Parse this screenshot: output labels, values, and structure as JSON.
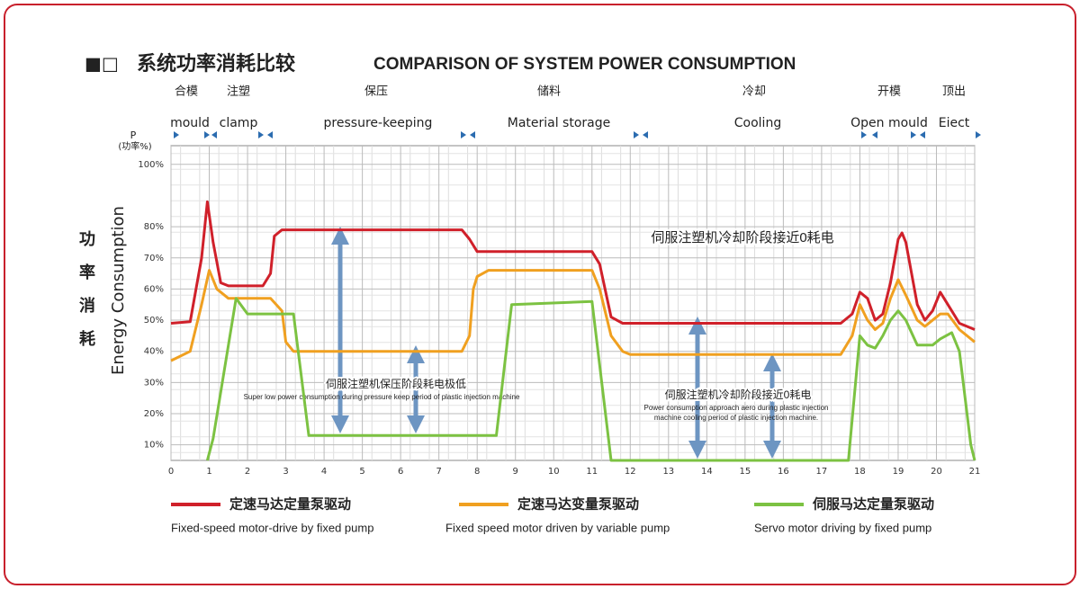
{
  "chart_data": {
    "type": "line",
    "title": "系统功率消耗比较",
    "title_marker": "■□",
    "subtitle": "COMPARISON OF SYSTEM POWER CONSUMPTION",
    "y_label_top": "P",
    "y_label_unit": "(功率%)",
    "y_label_cn": "功率消耗",
    "y_label": "Energy Consumption",
    "xlim": [
      0,
      21
    ],
    "xticks": [
      0,
      1,
      2,
      3,
      4,
      5,
      6,
      7,
      8,
      9,
      10,
      11,
      12,
      13,
      14,
      15,
      16,
      17,
      18,
      19,
      20,
      21
    ],
    "ylim": [
      5,
      106
    ],
    "yticks": [
      {
        "value": 10,
        "label": "10%"
      },
      {
        "value": 20,
        "label": "20%"
      },
      {
        "value": 30,
        "label": "30%"
      },
      {
        "value": 40,
        "label": "40%"
      },
      {
        "value": 50,
        "label": "50%"
      },
      {
        "value": 60,
        "label": "60%"
      },
      {
        "value": 70,
        "label": "70%"
      },
      {
        "value": 80,
        "label": "80%"
      },
      {
        "value": 100,
        "label": "100%"
      }
    ],
    "grid": true,
    "phases_cn": [
      "合模",
      "注塑",
      "保压",
      "储料",
      "冷却",
      "开模",
      "顶出"
    ],
    "phases_en": [
      "mould",
      "clamp",
      "pressure-keeping",
      "Material storage",
      "Cooling",
      "Open mould",
      "Eiect"
    ],
    "annotations": [
      "伺服注塑机冷却阶段接近0耗电",
      "伺服注塑机保压阶段耗电极低",
      "Super low power consumption during pressure keep period of plastic injection machine",
      "伺服注塑机冷却阶段接近0耗电",
      "Power consumption approach aero during plastic injection",
      "machine cooling period of plastic injection machine."
    ],
    "series": [
      {
        "name": "定速马达定量泵驱动",
        "description": "Fixed-speed motor-drive by fixed pump",
        "color": "#d0202a",
        "x": [
          0,
          0.5,
          0.8,
          0.95,
          1.1,
          1.3,
          1.5,
          2,
          2.4,
          2.6,
          2.7,
          2.9,
          4,
          7,
          7.6,
          7.8,
          8,
          9,
          10,
          11,
          11.2,
          11.5,
          11.8,
          12,
          14,
          16,
          17,
          17.5,
          17.8,
          18,
          18.2,
          18.4,
          18.6,
          18.8,
          19,
          19.1,
          19.2,
          19.5,
          19.7,
          19.9,
          20.1,
          20.3,
          20.6,
          21
        ],
        "values": [
          49,
          49.5,
          70,
          88,
          75,
          62,
          61,
          61,
          61,
          65,
          77,
          79,
          79,
          79,
          79,
          76,
          72,
          72,
          72,
          72,
          68,
          51,
          49,
          49,
          49,
          49,
          49,
          49,
          52,
          59,
          57,
          50,
          52,
          62,
          76,
          78,
          75,
          55,
          50,
          53,
          59,
          55,
          49,
          47
        ]
      },
      {
        "name": "定速马达变量泵驱动",
        "description": "Fixed speed motor driven by variable pump",
        "color": "#f0a020",
        "x": [
          0,
          0.5,
          0.8,
          1,
          1.2,
          1.5,
          2,
          2.6,
          2.9,
          3,
          3.2,
          4,
          7,
          7.6,
          7.8,
          7.9,
          8,
          8.3,
          10,
          11,
          11.2,
          11.5,
          11.8,
          12,
          14,
          16,
          17,
          17.5,
          17.8,
          18,
          18.2,
          18.4,
          18.6,
          18.8,
          19,
          19.2,
          19.5,
          19.7,
          19.9,
          20.1,
          20.3,
          20.6,
          21
        ],
        "values": [
          37,
          40,
          55,
          66,
          60,
          57,
          57,
          57,
          53,
          43,
          40,
          40,
          40,
          40,
          45,
          60,
          64,
          66,
          66,
          66,
          60,
          45,
          40,
          39,
          39,
          39,
          39,
          39,
          45,
          55,
          50,
          47,
          49,
          57,
          63,
          58,
          50,
          48,
          50,
          52,
          52,
          47,
          43
        ]
      },
      {
        "name": "伺服马达定量泵驱动",
        "description": "Servo motor driving by fixed pump",
        "color": "#7cc242",
        "x": [
          0.95,
          1.1,
          1.7,
          2,
          3.2,
          3.6,
          8.5,
          8.9,
          11,
          11.5,
          17.7,
          18,
          18.2,
          18.4,
          18.6,
          18.8,
          19,
          19.2,
          19.5,
          19.9,
          20.1,
          20.4,
          20.6,
          20.9,
          21
        ],
        "values": [
          5,
          12,
          57,
          52,
          52,
          13,
          13,
          55,
          56,
          5,
          5,
          45,
          42,
          41,
          45,
          50,
          53,
          50,
          42,
          42,
          44,
          46,
          40,
          10,
          5
        ]
      }
    ]
  }
}
